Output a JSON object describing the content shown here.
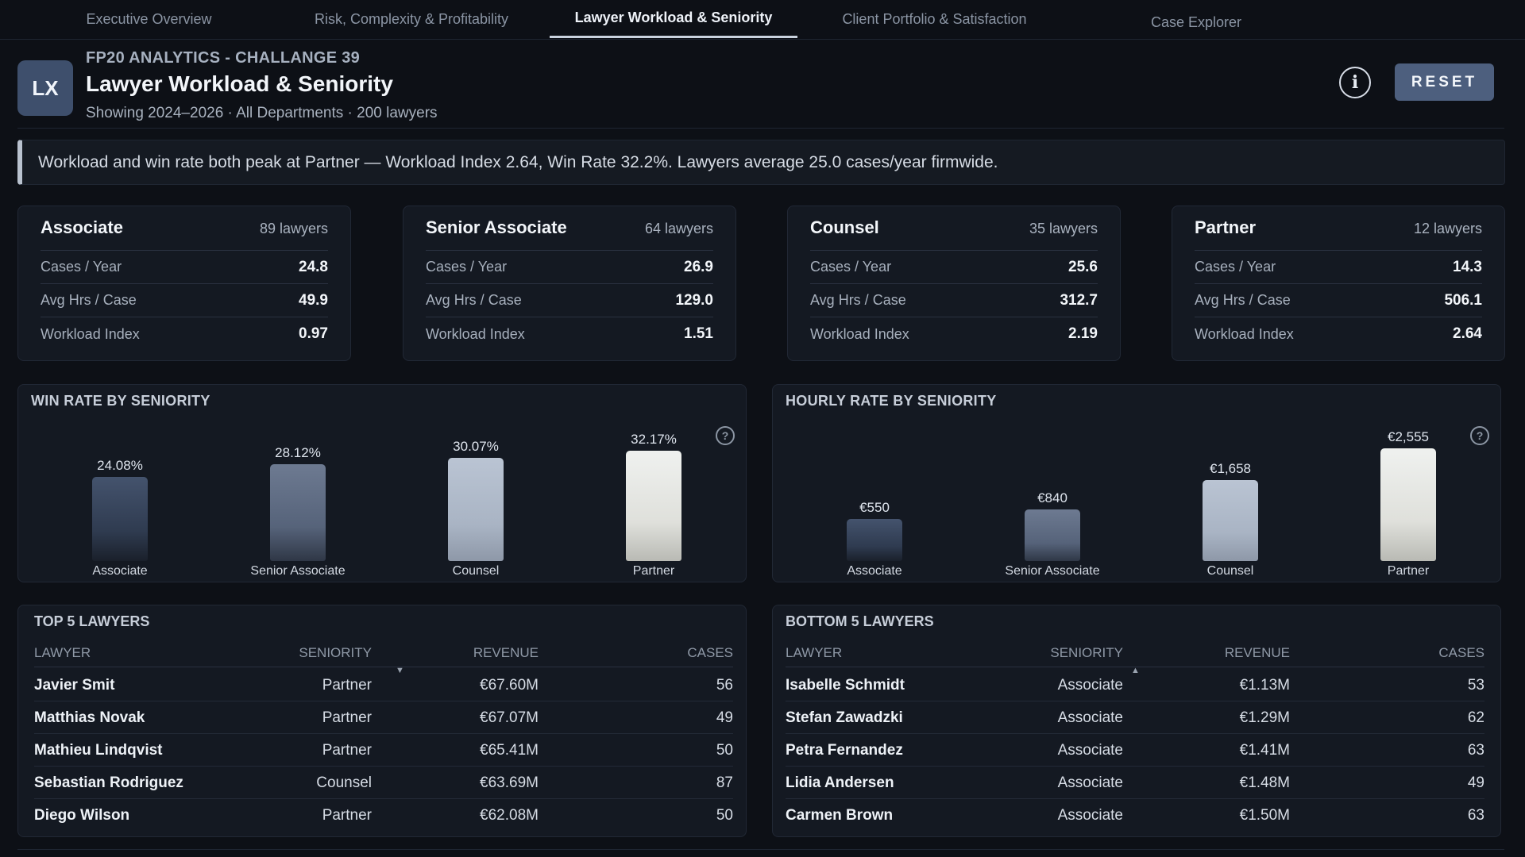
{
  "tabs": [
    {
      "label": "Executive Overview",
      "active": false
    },
    {
      "label": "Risk, Complexity & Profitability",
      "active": false
    },
    {
      "label": "Lawyer Workload & Seniority",
      "active": true
    },
    {
      "label": "Client Portfolio & Satisfaction",
      "active": false
    },
    {
      "label": "Case Explorer",
      "active": false
    }
  ],
  "header": {
    "logo": "LX",
    "kicker": "FP20 ANALYTICS - CHALLANGE 39",
    "title": "Lawyer Workload & Seniority",
    "subtitle": "Showing 2024–2026 · All Departments · 200 lawyers",
    "info_glyph": "i",
    "reset_label": "RESET"
  },
  "insight": "Workload and win rate both peak at Partner — Workload Index 2.64, Win Rate 32.2%. Lawyers average 25.0 cases/year firmwide.",
  "cards": [
    {
      "title": "Associate",
      "count": "89 lawyers",
      "rows": [
        {
          "label": "Cases / Year",
          "value": "24.8"
        },
        {
          "label": "Avg Hrs / Case",
          "value": "49.9"
        },
        {
          "label": "Workload Index",
          "value": "0.97"
        }
      ]
    },
    {
      "title": "Senior Associate",
      "count": "64 lawyers",
      "rows": [
        {
          "label": "Cases / Year",
          "value": "26.9"
        },
        {
          "label": "Avg Hrs / Case",
          "value": "129.0"
        },
        {
          "label": "Workload Index",
          "value": "1.51"
        }
      ]
    },
    {
      "title": "Counsel",
      "count": "35 lawyers",
      "rows": [
        {
          "label": "Cases / Year",
          "value": "25.6"
        },
        {
          "label": "Avg Hrs / Case",
          "value": "312.7"
        },
        {
          "label": "Workload Index",
          "value": "2.19"
        }
      ]
    },
    {
      "title": "Partner",
      "count": "12 lawyers",
      "rows": [
        {
          "label": "Cases / Year",
          "value": "14.3"
        },
        {
          "label": "Avg Hrs / Case",
          "value": "506.1"
        },
        {
          "label": "Workload Index",
          "value": "2.64"
        }
      ]
    }
  ],
  "charts": {
    "win": {
      "title": "WIN RATE BY SENIORITY",
      "help_glyph": "?"
    },
    "hourly": {
      "title": "HOURLY RATE BY SENIORITY",
      "help_glyph": "?"
    }
  },
  "chart_data": [
    {
      "type": "bar",
      "title": "WIN RATE BY SENIORITY",
      "categories": [
        "Associate",
        "Senior Associate",
        "Counsel",
        "Partner"
      ],
      "values": [
        24.08,
        28.12,
        30.07,
        32.17
      ],
      "value_labels": [
        "24.08%",
        "28.12%",
        "30.07%",
        "32.17%"
      ],
      "ylim": [
        0,
        33
      ],
      "grid": false
    },
    {
      "type": "bar",
      "title": "HOURLY RATE BY SENIORITY",
      "categories": [
        "Associate",
        "Senior Associate",
        "Counsel",
        "Partner"
      ],
      "values": [
        550,
        840,
        1658,
        2555
      ],
      "value_labels": [
        "€550",
        "€840",
        "€1,658",
        "€2,555"
      ],
      "ylim": [
        0,
        2555
      ],
      "grid": false
    }
  ],
  "tables": {
    "top": {
      "title": "TOP 5 LAWYERS",
      "headers": {
        "lawyer": "LAWYER",
        "seniority": "SENIORITY",
        "revenue": "REVENUE",
        "cases": "CASES"
      },
      "sort_glyph": "▼",
      "rows": [
        {
          "name": "Javier Smit",
          "seniority": "Partner",
          "revenue": "€67.60M",
          "cases": "56"
        },
        {
          "name": "Matthias Novak",
          "seniority": "Partner",
          "revenue": "€67.07M",
          "cases": "49"
        },
        {
          "name": "Mathieu Lindqvist",
          "seniority": "Partner",
          "revenue": "€65.41M",
          "cases": "50"
        },
        {
          "name": "Sebastian Rodriguez",
          "seniority": "Counsel",
          "revenue": "€63.69M",
          "cases": "87"
        },
        {
          "name": "Diego Wilson",
          "seniority": "Partner",
          "revenue": "€62.08M",
          "cases": "50"
        }
      ]
    },
    "bottom": {
      "title": "BOTTOM 5 LAWYERS",
      "headers": {
        "lawyer": "LAWYER",
        "seniority": "SENIORITY",
        "revenue": "REVENUE",
        "cases": "CASES"
      },
      "sort_glyph": "▲",
      "rows": [
        {
          "name": "Isabelle Schmidt",
          "seniority": "Associate",
          "revenue": "€1.13M",
          "cases": "53"
        },
        {
          "name": "Stefan Zawadzki",
          "seniority": "Associate",
          "revenue": "€1.29M",
          "cases": "62"
        },
        {
          "name": "Petra Fernandez",
          "seniority": "Associate",
          "revenue": "€1.41M",
          "cases": "63"
        },
        {
          "name": "Lidia Andersen",
          "seniority": "Associate",
          "revenue": "€1.48M",
          "cases": "49"
        },
        {
          "name": "Carmen Brown",
          "seniority": "Associate",
          "revenue": "€1.50M",
          "cases": "63"
        }
      ]
    }
  },
  "colors": {
    "background": "#0d1016",
    "panel": "#141922",
    "accent": "#4d5f7e"
  }
}
